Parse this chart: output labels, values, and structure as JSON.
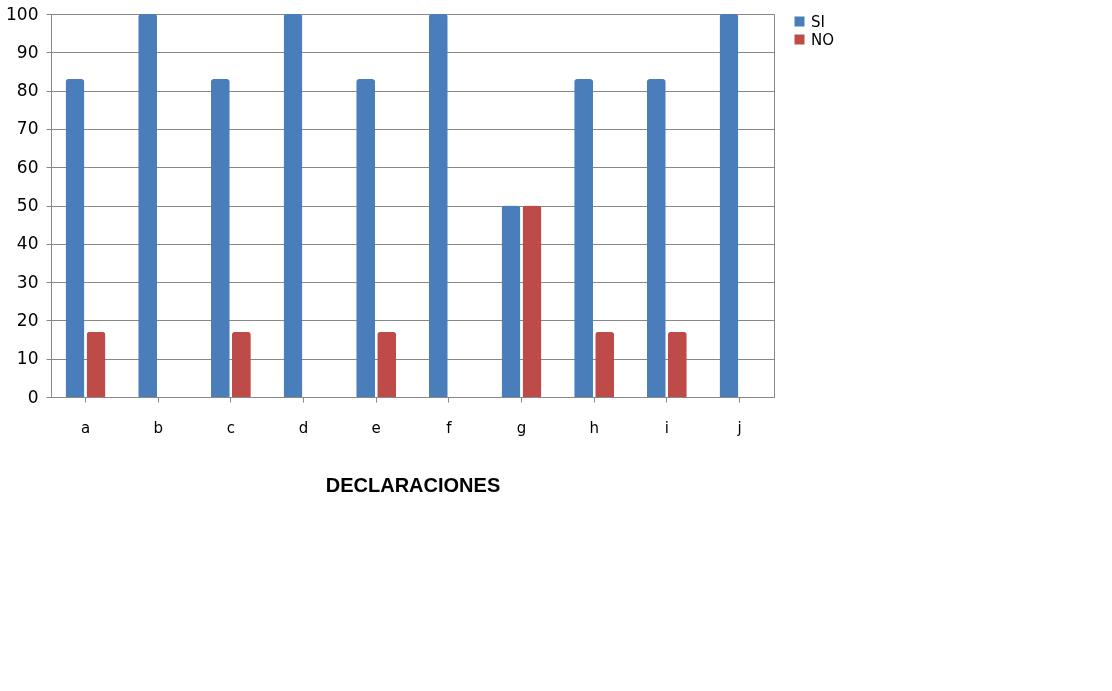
{
  "chart_data": {
    "type": "bar",
    "xlabel": "DECLARACIONES",
    "categories": [
      "a",
      "b",
      "c",
      "d",
      "e",
      "f",
      "g",
      "h",
      "i",
      "j"
    ],
    "series": [
      {
        "name": "SI",
        "color": "#4a7ebb",
        "values": [
          83,
          100,
          83,
          100,
          83,
          100,
          50,
          83,
          83,
          100
        ]
      },
      {
        "name": "NO",
        "color": "#be4b48",
        "values": [
          17,
          0,
          17,
          0,
          17,
          0,
          50,
          17,
          17,
          0
        ]
      }
    ],
    "ylim": [
      0,
      100
    ],
    "yticks": [
      0,
      10,
      20,
      30,
      40,
      50,
      60,
      70,
      80,
      90,
      100
    ],
    "grid": "y",
    "legend": "right"
  }
}
